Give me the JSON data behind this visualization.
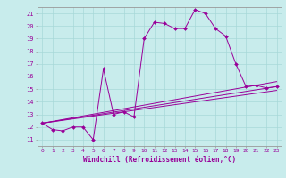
{
  "xlabel": "Windchill (Refroidissement éolien,°C)",
  "bg_color": "#c8ecec",
  "line_color": "#990099",
  "grid_color": "#a8d8d8",
  "ylim": [
    10.5,
    21.5
  ],
  "xlim": [
    -0.5,
    23.5
  ],
  "yticks": [
    11,
    12,
    13,
    14,
    15,
    16,
    17,
    18,
    19,
    20,
    21
  ],
  "xticks": [
    0,
    1,
    2,
    3,
    4,
    5,
    6,
    7,
    8,
    9,
    10,
    11,
    12,
    13,
    14,
    15,
    16,
    17,
    18,
    19,
    20,
    21,
    22,
    23
  ],
  "wavy_x": [
    0,
    1,
    2,
    3,
    4,
    5,
    6,
    7,
    8,
    9,
    10,
    11,
    12,
    13,
    14,
    15,
    16,
    17,
    18,
    19,
    20,
    21,
    22,
    23
  ],
  "wavy_y": [
    12.3,
    11.8,
    11.7,
    12.0,
    12.0,
    11.0,
    16.6,
    13.0,
    13.2,
    12.8,
    19.0,
    20.3,
    20.2,
    19.8,
    19.8,
    21.3,
    21.0,
    19.8,
    19.2,
    17.0,
    15.2,
    15.3,
    15.1,
    15.2
  ],
  "ref_lines": [
    {
      "x": [
        0,
        23
      ],
      "y": [
        12.3,
        15.6
      ]
    },
    {
      "x": [
        0,
        23
      ],
      "y": [
        12.3,
        15.2
      ]
    },
    {
      "x": [
        0,
        23
      ],
      "y": [
        12.3,
        14.9
      ]
    }
  ]
}
